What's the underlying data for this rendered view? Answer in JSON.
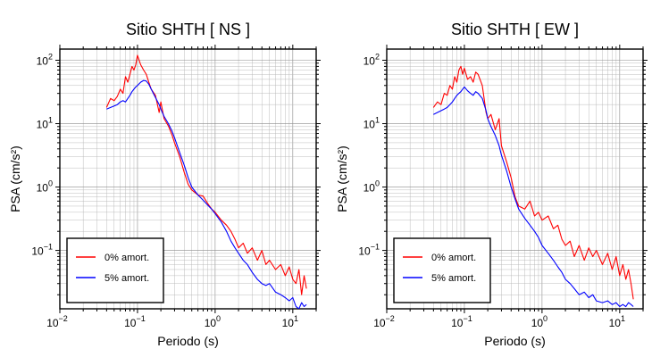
{
  "chart_data": [
    {
      "type": "line",
      "title": "Sitio SHTH [ NS ]",
      "xlabel": "Periodo (s)",
      "ylabel": "PSA (cm/s²)",
      "xscale": "log",
      "yscale": "log",
      "xlim": [
        0.01,
        20
      ],
      "ylim": [
        0.012,
        150
      ],
      "grid": true,
      "legend": "bottom-left",
      "x_ticks": [
        {
          "value": 0.01,
          "base": "10",
          "exp": "−2"
        },
        {
          "value": 0.1,
          "base": "10",
          "exp": "−1"
        },
        {
          "value": 1,
          "base": "10",
          "exp": "0"
        },
        {
          "value": 10,
          "base": "10",
          "exp": "1"
        }
      ],
      "y_ticks": [
        {
          "value": 0.1,
          "base": "10",
          "exp": "−1"
        },
        {
          "value": 1,
          "base": "10",
          "exp": "0"
        },
        {
          "value": 10,
          "base": "10",
          "exp": "1"
        },
        {
          "value": 100,
          "base": "10",
          "exp": "2"
        }
      ],
      "series": [
        {
          "name": "0% amort.",
          "color": "#ff0000",
          "x": [
            0.04,
            0.045,
            0.05,
            0.055,
            0.06,
            0.065,
            0.07,
            0.075,
            0.08,
            0.085,
            0.09,
            0.095,
            0.1,
            0.11,
            0.12,
            0.13,
            0.14,
            0.15,
            0.17,
            0.19,
            0.2,
            0.22,
            0.25,
            0.28,
            0.3,
            0.35,
            0.4,
            0.45,
            0.5,
            0.6,
            0.7,
            0.8,
            0.9,
            1.0,
            1.2,
            1.4,
            1.6,
            1.8,
            2.0,
            2.3,
            2.6,
            3.0,
            3.5,
            4.0,
            4.5,
            5.0,
            6.0,
            7.0,
            8.0,
            9.0,
            10,
            11,
            12,
            13,
            14,
            15
          ],
          "y": [
            18,
            25,
            23,
            27,
            35,
            30,
            55,
            45,
            60,
            80,
            70,
            85,
            120,
            85,
            70,
            60,
            45,
            35,
            28,
            15,
            22,
            12,
            9.2,
            6.5,
            5.0,
            3.0,
            1.7,
            1.1,
            0.9,
            0.75,
            0.72,
            0.55,
            0.45,
            0.4,
            0.3,
            0.25,
            0.2,
            0.15,
            0.11,
            0.13,
            0.09,
            0.11,
            0.07,
            0.1,
            0.06,
            0.07,
            0.05,
            0.06,
            0.04,
            0.055,
            0.035,
            0.03,
            0.05,
            0.02,
            0.04,
            0.025
          ]
        },
        {
          "name": "5% amort.",
          "color": "#0000ff",
          "x": [
            0.04,
            0.045,
            0.05,
            0.055,
            0.06,
            0.065,
            0.07,
            0.075,
            0.08,
            0.085,
            0.09,
            0.095,
            0.1,
            0.11,
            0.12,
            0.13,
            0.14,
            0.15,
            0.17,
            0.19,
            0.2,
            0.22,
            0.25,
            0.28,
            0.3,
            0.35,
            0.4,
            0.45,
            0.5,
            0.6,
            0.7,
            0.8,
            0.9,
            1.0,
            1.2,
            1.4,
            1.6,
            1.8,
            2.0,
            2.3,
            2.6,
            3.0,
            3.5,
            4.0,
            4.5,
            5.0,
            6.0,
            7.0,
            8.0,
            9.0,
            10,
            11,
            12,
            13,
            14,
            15
          ],
          "y": [
            17,
            18,
            19,
            20,
            22,
            23,
            22,
            25,
            28,
            32,
            35,
            38,
            40,
            45,
            48,
            47,
            42,
            35,
            26,
            20,
            17,
            13,
            10,
            7.5,
            6.0,
            3.5,
            2.2,
            1.4,
            1.0,
            0.75,
            0.62,
            0.52,
            0.45,
            0.38,
            0.28,
            0.2,
            0.14,
            0.11,
            0.09,
            0.07,
            0.06,
            0.045,
            0.035,
            0.03,
            0.028,
            0.03,
            0.022,
            0.02,
            0.018,
            0.016,
            0.018,
            0.013,
            0.012,
            0.015,
            0.013,
            0.014
          ]
        }
      ]
    },
    {
      "type": "line",
      "title": "Sitio SHTH [ EW ]",
      "xlabel": "Periodo (s)",
      "ylabel": "PSA (cm/s²)",
      "xscale": "log",
      "yscale": "log",
      "xlim": [
        0.01,
        20
      ],
      "ylim": [
        0.012,
        150
      ],
      "grid": true,
      "legend": "bottom-left",
      "x_ticks": [
        {
          "value": 0.01,
          "base": "10",
          "exp": "−2"
        },
        {
          "value": 0.1,
          "base": "10",
          "exp": "−1"
        },
        {
          "value": 1,
          "base": "10",
          "exp": "0"
        },
        {
          "value": 10,
          "base": "10",
          "exp": "1"
        }
      ],
      "y_ticks": [
        {
          "value": 0.1,
          "base": "10",
          "exp": "−1"
        },
        {
          "value": 1,
          "base": "10",
          "exp": "0"
        },
        {
          "value": 10,
          "base": "10",
          "exp": "1"
        },
        {
          "value": 100,
          "base": "10",
          "exp": "2"
        }
      ],
      "series": [
        {
          "name": "0% amort.",
          "color": "#ff0000",
          "x": [
            0.04,
            0.045,
            0.05,
            0.055,
            0.06,
            0.065,
            0.07,
            0.075,
            0.08,
            0.085,
            0.09,
            0.095,
            0.1,
            0.11,
            0.12,
            0.13,
            0.14,
            0.15,
            0.17,
            0.19,
            0.2,
            0.22,
            0.25,
            0.28,
            0.3,
            0.35,
            0.4,
            0.45,
            0.5,
            0.6,
            0.7,
            0.8,
            0.9,
            1.0,
            1.2,
            1.4,
            1.6,
            1.8,
            2.0,
            2.3,
            2.6,
            3.0,
            3.5,
            4.0,
            4.5,
            5.0,
            6.0,
            7.0,
            8.0,
            9.0,
            10,
            11,
            12,
            13,
            14,
            15
          ],
          "y": [
            18,
            22,
            20,
            30,
            28,
            40,
            35,
            55,
            45,
            70,
            80,
            60,
            75,
            50,
            55,
            45,
            65,
            60,
            40,
            15,
            12,
            14,
            8.0,
            12,
            4.5,
            2.5,
            1.4,
            0.7,
            0.5,
            0.45,
            0.6,
            0.35,
            0.4,
            0.3,
            0.35,
            0.22,
            0.25,
            0.15,
            0.12,
            0.14,
            0.08,
            0.12,
            0.07,
            0.11,
            0.08,
            0.1,
            0.06,
            0.09,
            0.05,
            0.08,
            0.04,
            0.06,
            0.035,
            0.05,
            0.03,
            0.017
          ]
        },
        {
          "name": "5% amort.",
          "color": "#0000ff",
          "x": [
            0.04,
            0.045,
            0.05,
            0.055,
            0.06,
            0.065,
            0.07,
            0.075,
            0.08,
            0.085,
            0.09,
            0.095,
            0.1,
            0.11,
            0.12,
            0.13,
            0.14,
            0.15,
            0.17,
            0.19,
            0.2,
            0.22,
            0.25,
            0.28,
            0.3,
            0.35,
            0.4,
            0.45,
            0.5,
            0.6,
            0.7,
            0.8,
            0.9,
            1.0,
            1.2,
            1.4,
            1.6,
            1.8,
            2.0,
            2.3,
            2.6,
            3.0,
            3.5,
            4.0,
            4.5,
            5.0,
            6.0,
            7.0,
            8.0,
            9.0,
            10,
            11,
            12,
            13,
            14,
            15
          ],
          "y": [
            14,
            15,
            16,
            17,
            18,
            20,
            22,
            25,
            28,
            30,
            32,
            35,
            38,
            33,
            30,
            28,
            32,
            30,
            25,
            16,
            12,
            9.0,
            6.5,
            4.5,
            3.2,
            1.8,
            1.0,
            0.65,
            0.45,
            0.32,
            0.25,
            0.2,
            0.16,
            0.12,
            0.09,
            0.07,
            0.055,
            0.045,
            0.035,
            0.03,
            0.025,
            0.02,
            0.022,
            0.018,
            0.02,
            0.016,
            0.015,
            0.016,
            0.014,
            0.015,
            0.013,
            0.014,
            0.013,
            0.015,
            0.014,
            0.013
          ]
        }
      ]
    }
  ]
}
